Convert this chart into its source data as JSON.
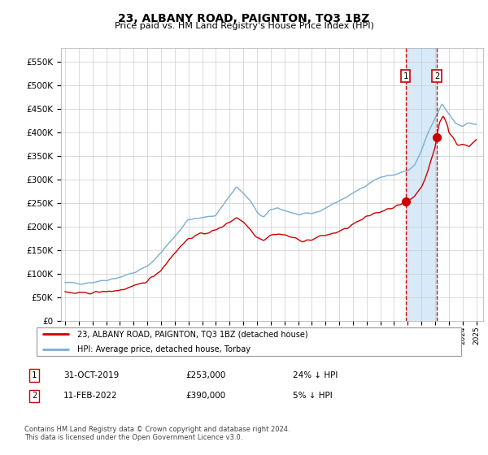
{
  "title": "23, ALBANY ROAD, PAIGNTON, TQ3 1BZ",
  "subtitle": "Price paid vs. HM Land Registry's House Price Index (HPI)",
  "legend_line1": "23, ALBANY ROAD, PAIGNTON, TQ3 1BZ (detached house)",
  "legend_line2": "HPI: Average price, detached house, Torbay",
  "footnote": "Contains HM Land Registry data © Crown copyright and database right 2024.\nThis data is licensed under the Open Government Licence v3.0.",
  "marker1": {
    "label": "1",
    "date": "31-OCT-2019",
    "price": "£253,000",
    "hpi": "24% ↓ HPI",
    "x": 2019.833
  },
  "marker2": {
    "label": "2",
    "date": "11-FEB-2022",
    "price": "£390,000",
    "hpi": "5% ↓ HPI",
    "x": 2022.12
  },
  "hpi_color": "#7aaed6",
  "price_color": "#cc0000",
  "marker_color": "#cc0000",
  "shaded_color": "#d8eaf8",
  "ylim": [
    0,
    580000
  ],
  "yticks": [
    0,
    50000,
    100000,
    150000,
    200000,
    250000,
    300000,
    350000,
    400000,
    450000,
    500000,
    550000
  ],
  "xlim": [
    1994.7,
    2025.5
  ],
  "xticks": [
    1995,
    1996,
    1997,
    1998,
    1999,
    2000,
    2001,
    2002,
    2003,
    2004,
    2005,
    2006,
    2007,
    2008,
    2009,
    2010,
    2011,
    2012,
    2013,
    2014,
    2015,
    2016,
    2017,
    2018,
    2019,
    2020,
    2021,
    2022,
    2023,
    2024,
    2025
  ]
}
